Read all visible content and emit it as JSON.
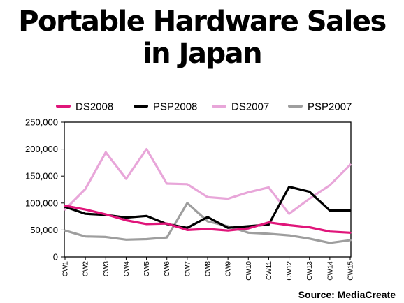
{
  "chart_data": {
    "type": "line",
    "title_lines": [
      "Portable Hardware Sales",
      "in Japan"
    ],
    "source": "Source: MediaCreate",
    "categories": [
      "CW1",
      "CW2",
      "CW3",
      "CW4",
      "CW5",
      "CW6",
      "CW7",
      "CW8",
      "CW9",
      "CW10",
      "CW11",
      "CW12",
      "CW13",
      "CW14",
      "CW15"
    ],
    "ylim": [
      0,
      250000
    ],
    "yticks": [
      0,
      50000,
      100000,
      150000,
      200000,
      250000
    ],
    "ytick_labels": [
      "0",
      "50,000",
      "100,000",
      "150,000",
      "200,000",
      "250,000"
    ],
    "grid": false,
    "legend_position": "top",
    "series": [
      {
        "name": "DS2008",
        "color": "#e0157a",
        "values": [
          95000,
          88000,
          79000,
          68000,
          61000,
          62000,
          50000,
          52000,
          49000,
          53000,
          64000,
          59000,
          55000,
          47000,
          45000
        ]
      },
      {
        "name": "PSP2008",
        "color": "#000000",
        "values": [
          93000,
          80000,
          78000,
          73000,
          76000,
          61000,
          54000,
          74000,
          54000,
          57000,
          60000,
          130000,
          121000,
          86000,
          86000
        ]
      },
      {
        "name": "DS2007",
        "color": "#e8a6d9",
        "values": [
          88000,
          126000,
          194000,
          145000,
          200000,
          136000,
          135000,
          111000,
          108000,
          120000,
          129000,
          80000,
          108000,
          133000,
          171000
        ]
      },
      {
        "name": "PSP2007",
        "color": "#9e9e9e",
        "values": [
          49000,
          38000,
          37000,
          32000,
          33000,
          36000,
          100000,
          66000,
          57000,
          45000,
          43000,
          40000,
          34000,
          26000,
          31000
        ]
      }
    ]
  }
}
